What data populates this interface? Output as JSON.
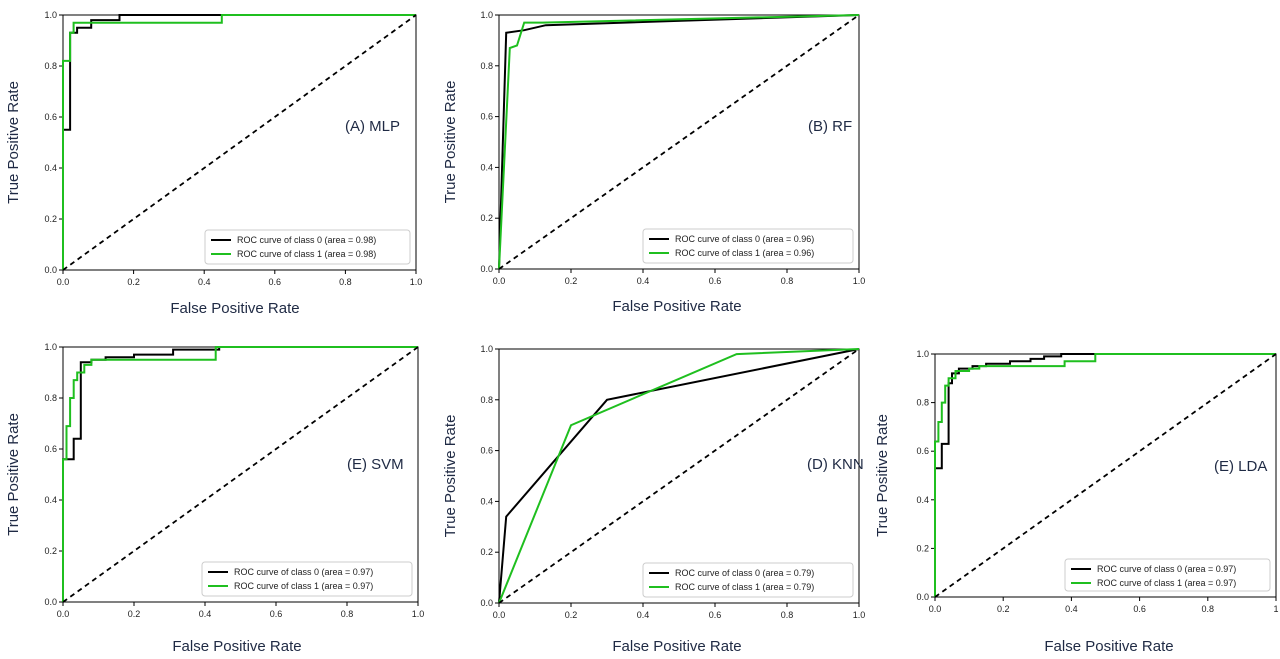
{
  "chart_data": [
    {
      "type": "line",
      "title": "(A) MLP",
      "xlabel": "False Positive Rate",
      "ylabel": "True Positive Rate",
      "xlim": [
        0,
        1
      ],
      "ylim": [
        0,
        1
      ],
      "xticks": [
        "0.0",
        "0.2",
        "0.4",
        "0.6",
        "0.8",
        "1.0"
      ],
      "yticks": [
        "0.0",
        "0.2",
        "0.4",
        "0.6",
        "0.8",
        "1.0"
      ],
      "legend_position": "lower-right",
      "grid": false,
      "series": [
        {
          "name": "ROC curve of class 0 (area = 0.98)",
          "color": "#000000",
          "points": [
            [
              0,
              0
            ],
            [
              0,
              0.55
            ],
            [
              0.02,
              0.55
            ],
            [
              0.02,
              0.93
            ],
            [
              0.04,
              0.93
            ],
            [
              0.04,
              0.95
            ],
            [
              0.08,
              0.95
            ],
            [
              0.08,
              0.98
            ],
            [
              0.16,
              0.98
            ],
            [
              0.16,
              1.0
            ],
            [
              1,
              1
            ]
          ]
        },
        {
          "name": "ROC curve of class 1 (area = 0.98)",
          "color": "#1fbf1f",
          "points": [
            [
              0,
              0
            ],
            [
              0,
              0.82
            ],
            [
              0.02,
              0.82
            ],
            [
              0.02,
              0.93
            ],
            [
              0.03,
              0.93
            ],
            [
              0.03,
              0.97
            ],
            [
              0.45,
              0.97
            ],
            [
              0.45,
              1.0
            ],
            [
              1,
              1
            ]
          ]
        },
        {
          "name": "",
          "color": "#000000",
          "dashed": true,
          "points": [
            [
              0,
              0
            ],
            [
              1,
              1
            ]
          ]
        }
      ]
    },
    {
      "type": "line",
      "title": "(B) RF",
      "xlabel": "False Positive Rate",
      "ylabel": "True Positive Rate",
      "xlim": [
        0,
        1
      ],
      "ylim": [
        0,
        1
      ],
      "xticks": [
        "0.0",
        "0.2",
        "0.4",
        "0.6",
        "0.8",
        "1.0"
      ],
      "yticks": [
        "0.0",
        "0.2",
        "0.4",
        "0.6",
        "0.8",
        "1.0"
      ],
      "legend_position": "lower-right",
      "grid": false,
      "series": [
        {
          "name": "ROC curve of class 0 (area = 0.96)",
          "color": "#000000",
          "points": [
            [
              0,
              0
            ],
            [
              0.02,
              0.93
            ],
            [
              0.07,
              0.94
            ],
            [
              0.13,
              0.96
            ],
            [
              1,
              1
            ]
          ]
        },
        {
          "name": "ROC curve of class 1 (area = 0.96)",
          "color": "#1fbf1f",
          "points": [
            [
              0,
              0
            ],
            [
              0.03,
              0.87
            ],
            [
              0.05,
              0.88
            ],
            [
              0.07,
              0.97
            ],
            [
              0.12,
              0.97
            ],
            [
              1,
              1
            ]
          ]
        },
        {
          "name": "",
          "color": "#000000",
          "dashed": true,
          "points": [
            [
              0,
              0
            ],
            [
              1,
              1
            ]
          ]
        }
      ]
    },
    {
      "type": "line",
      "title": "(E) SVM",
      "xlabel": "False Positive Rate",
      "ylabel": "True Positive Rate",
      "xlim": [
        0,
        1
      ],
      "ylim": [
        0,
        1
      ],
      "xticks": [
        "0.0",
        "0.2",
        "0.4",
        "0.6",
        "0.8",
        "1.0"
      ],
      "yticks": [
        "0.0",
        "0.2",
        "0.4",
        "0.6",
        "0.8",
        "1.0"
      ],
      "legend_position": "lower-right",
      "grid": false,
      "series": [
        {
          "name": "ROC curve of class 0 (area = 0.97)",
          "color": "#000000",
          "points": [
            [
              0,
              0
            ],
            [
              0,
              0.56
            ],
            [
              0.03,
              0.56
            ],
            [
              0.03,
              0.64
            ],
            [
              0.05,
              0.64
            ],
            [
              0.05,
              0.94
            ],
            [
              0.08,
              0.94
            ],
            [
              0.08,
              0.95
            ],
            [
              0.12,
              0.95
            ],
            [
              0.12,
              0.96
            ],
            [
              0.2,
              0.96
            ],
            [
              0.2,
              0.97
            ],
            [
              0.31,
              0.97
            ],
            [
              0.31,
              0.99
            ],
            [
              0.44,
              0.99
            ],
            [
              0.44,
              1.0
            ],
            [
              1,
              1
            ]
          ]
        },
        {
          "name": "ROC curve of class 1 (area = 0.97)",
          "color": "#1fbf1f",
          "points": [
            [
              0,
              0
            ],
            [
              0,
              0.56
            ],
            [
              0.01,
              0.56
            ],
            [
              0.01,
              0.69
            ],
            [
              0.02,
              0.69
            ],
            [
              0.02,
              0.8
            ],
            [
              0.03,
              0.8
            ],
            [
              0.03,
              0.87
            ],
            [
              0.04,
              0.87
            ],
            [
              0.04,
              0.9
            ],
            [
              0.06,
              0.9
            ],
            [
              0.06,
              0.93
            ],
            [
              0.08,
              0.93
            ],
            [
              0.08,
              0.95
            ],
            [
              0.43,
              0.95
            ],
            [
              0.43,
              1.0
            ],
            [
              1,
              1
            ]
          ]
        },
        {
          "name": "",
          "color": "#000000",
          "dashed": true,
          "points": [
            [
              0,
              0
            ],
            [
              1,
              1
            ]
          ]
        }
      ]
    },
    {
      "type": "line",
      "title": "(D) KNN",
      "xlabel": "False Positive Rate",
      "ylabel": "True Positive Rate",
      "xlim": [
        0,
        1
      ],
      "ylim": [
        0,
        1
      ],
      "xticks": [
        "0.0",
        "0.2",
        "0.4",
        "0.6",
        "0.8",
        "1.0"
      ],
      "yticks": [
        "0.0",
        "0.2",
        "0.4",
        "0.6",
        "0.8",
        "1.0"
      ],
      "legend_position": "lower-right",
      "grid": false,
      "series": [
        {
          "name": "ROC curve of class 0 (area = 0.79)",
          "color": "#000000",
          "points": [
            [
              0,
              0
            ],
            [
              0.02,
              0.34
            ],
            [
              0.3,
              0.8
            ],
            [
              1,
              1
            ]
          ]
        },
        {
          "name": "ROC curve of class 1 (area = 0.79)",
          "color": "#1fbf1f",
          "points": [
            [
              0,
              0
            ],
            [
              0.2,
              0.7
            ],
            [
              0.66,
              0.98
            ],
            [
              1,
              1
            ]
          ]
        },
        {
          "name": "",
          "color": "#000000",
          "dashed": true,
          "points": [
            [
              0,
              0
            ],
            [
              1,
              1
            ]
          ]
        }
      ]
    },
    {
      "type": "line",
      "title": "(E) LDA",
      "xlabel": "False Positive Rate",
      "ylabel": "True Positive Rate",
      "xlim": [
        0,
        1
      ],
      "ylim": [
        0,
        1
      ],
      "xticks": [
        "0.0",
        "0.2",
        "0.4",
        "0.6",
        "0.8",
        "1"
      ],
      "yticks": [
        "0.0",
        "0.2",
        "0.4",
        "0.6",
        "0.8",
        "1.0"
      ],
      "legend_position": "lower-right",
      "grid": false,
      "series": [
        {
          "name": "ROC curve of class 0 (area = 0.97)",
          "color": "#000000",
          "points": [
            [
              0,
              0
            ],
            [
              0,
              0.53
            ],
            [
              0.02,
              0.53
            ],
            [
              0.02,
              0.63
            ],
            [
              0.04,
              0.63
            ],
            [
              0.04,
              0.88
            ],
            [
              0.05,
              0.88
            ],
            [
              0.05,
              0.92
            ],
            [
              0.07,
              0.92
            ],
            [
              0.07,
              0.94
            ],
            [
              0.11,
              0.94
            ],
            [
              0.11,
              0.95
            ],
            [
              0.15,
              0.95
            ],
            [
              0.15,
              0.96
            ],
            [
              0.22,
              0.96
            ],
            [
              0.22,
              0.97
            ],
            [
              0.28,
              0.97
            ],
            [
              0.28,
              0.98
            ],
            [
              0.32,
              0.98
            ],
            [
              0.32,
              0.99
            ],
            [
              0.37,
              0.99
            ],
            [
              0.37,
              1.0
            ],
            [
              1,
              1
            ]
          ]
        },
        {
          "name": "ROC curve of class 1 (area = 0.97)",
          "color": "#1fbf1f",
          "points": [
            [
              0,
              0
            ],
            [
              0,
              0.64
            ],
            [
              0.01,
              0.64
            ],
            [
              0.01,
              0.72
            ],
            [
              0.02,
              0.72
            ],
            [
              0.02,
              0.8
            ],
            [
              0.03,
              0.8
            ],
            [
              0.03,
              0.87
            ],
            [
              0.04,
              0.87
            ],
            [
              0.04,
              0.9
            ],
            [
              0.06,
              0.9
            ],
            [
              0.06,
              0.93
            ],
            [
              0.1,
              0.93
            ],
            [
              0.1,
              0.94
            ],
            [
              0.13,
              0.94
            ],
            [
              0.13,
              0.95
            ],
            [
              0.38,
              0.95
            ],
            [
              0.38,
              0.97
            ],
            [
              0.47,
              0.97
            ],
            [
              0.47,
              1.0
            ],
            [
              1,
              1
            ]
          ]
        },
        {
          "name": "",
          "color": "#000000",
          "dashed": true,
          "points": [
            [
              0,
              0
            ],
            [
              1,
              1
            ]
          ]
        }
      ]
    }
  ]
}
